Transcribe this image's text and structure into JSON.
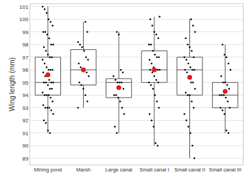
{
  "chart_data": {
    "type": "box",
    "y_label": "Wing length (mm)",
    "categories": [
      "Mining pond",
      "Marsh",
      "Large canal",
      "Small canal I",
      "Small canal II",
      "Small canal III"
    ],
    "color": "#555555",
    "grid": true,
    "ylim": [
      88.5,
      101.2
    ],
    "yticks": [
      89,
      90,
      91,
      92,
      93,
      94,
      95,
      96,
      97,
      98,
      99,
      100,
      101
    ],
    "boxes": [
      {
        "lowerfence": 91,
        "q1": 94,
        "median": 95,
        "q3": 97,
        "upperfence": 101
      },
      {
        "lowerfence": 93,
        "q1": 94.8,
        "median": 96,
        "q3": 97.6,
        "upperfence": 99.8
      },
      {
        "lowerfence": 91,
        "q1": 93.8,
        "median": 95,
        "q3": 95.3,
        "upperfence": 99
      },
      {
        "lowerfence": 90,
        "q1": 95,
        "median": 96,
        "q3": 97.5,
        "upperfence": 100.2
      },
      {
        "lowerfence": 89,
        "q1": 94,
        "median": 96,
        "q3": 97,
        "upperfence": 100
      },
      {
        "lowerfence": 91,
        "q1": 93,
        "median": 94,
        "q3": 95,
        "upperfence": 98
      }
    ],
    "means": {
      "color": "#e41a1c",
      "marker": "circle",
      "values": [
        95.6,
        96.0,
        94.6,
        96.0,
        95.4,
        94.3
      ]
    },
    "points": {
      "color": "#000000",
      "marker": "circle",
      "values": [
        [
          101,
          100.8,
          100.5,
          100,
          99.8,
          99.5,
          99,
          99,
          98.8,
          98.5,
          98,
          98,
          97.8,
          97.5,
          97.2,
          97,
          97,
          96.8,
          96.5,
          96.2,
          96,
          96,
          96,
          95.8,
          95.5,
          95.5,
          95.2,
          95,
          95,
          95,
          95,
          94.8,
          94.5,
          94.5,
          94.2,
          94,
          94,
          94,
          93.8,
          93.5,
          93.2,
          93,
          93,
          93,
          92.8,
          92.5,
          92,
          91.8,
          91.2,
          91
        ],
        [
          99.8,
          99,
          98.2,
          98,
          97.8,
          97.5,
          97,
          96.8,
          96.5,
          96.2,
          96,
          96,
          95.8,
          95.5,
          95,
          94.8,
          94.5,
          94,
          93.5,
          93
        ],
        [
          99,
          98.8,
          96,
          95.8,
          95.5,
          95.2,
          95,
          95,
          95,
          94.5,
          94,
          94,
          93.8,
          93.5,
          93,
          92.5,
          91.5,
          91
        ],
        [
          100.2,
          100,
          99.5,
          99,
          98.8,
          98.5,
          98,
          98,
          97.5,
          97.2,
          97,
          97,
          96.8,
          96.5,
          96.2,
          96,
          96,
          96,
          96,
          95.8,
          95.5,
          95.2,
          95,
          95,
          94.8,
          94.5,
          94,
          93.5,
          93,
          92.5,
          92,
          91.5,
          90.2,
          90
        ],
        [
          100,
          99.5,
          99,
          98.5,
          98,
          97.8,
          97.5,
          97,
          97,
          96.8,
          96.5,
          96.2,
          96,
          96,
          96,
          95.8,
          95.5,
          95,
          95,
          94.5,
          94.2,
          94,
          94,
          93.5,
          93,
          92.5,
          92,
          91.5,
          91,
          90,
          89
        ],
        [
          98,
          97.2,
          97,
          96.5,
          96,
          95.5,
          95,
          95,
          94.8,
          94.5,
          94,
          94,
          94,
          93.8,
          93.5,
          93,
          93,
          92.8,
          92.5,
          91.2,
          91
        ]
      ]
    }
  }
}
